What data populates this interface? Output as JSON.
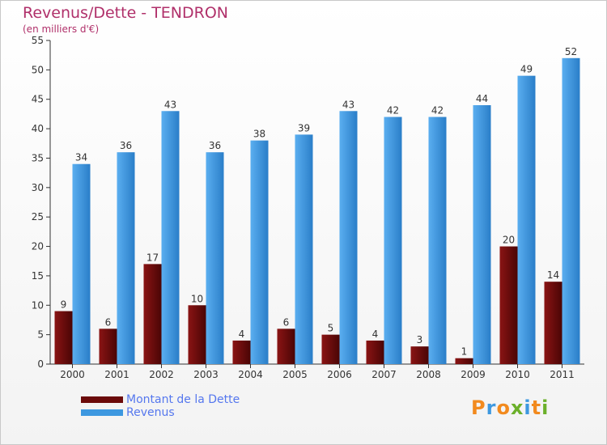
{
  "chart_title": "Revenus/Dette - TENDRON",
  "chart_subtitle": "(en milliers d'€)",
  "logo_text": "Proxiti",
  "colors": {
    "dette": "#6b0a0a",
    "revenus": "#3d98e0",
    "title": "#b0306a",
    "legend_text": "#5577ee"
  },
  "chart_data": {
    "type": "bar",
    "categories": [
      "2000",
      "2001",
      "2002",
      "2003",
      "2004",
      "2005",
      "2006",
      "2007",
      "2008",
      "2009",
      "2010",
      "2011"
    ],
    "series": [
      {
        "name": "Montant de la Dette",
        "values": [
          9,
          6,
          17,
          10,
          4,
          6,
          5,
          4,
          3,
          1,
          20,
          14
        ]
      },
      {
        "name": "Revenus",
        "values": [
          34,
          36,
          43,
          36,
          38,
          39,
          43,
          42,
          42,
          44,
          49,
          52
        ]
      }
    ],
    "ylim": [
      0,
      55
    ],
    "yticks": [
      0,
      5,
      10,
      15,
      20,
      25,
      30,
      35,
      40,
      45,
      50,
      55
    ],
    "grid": false,
    "legend_position": "bottom-left"
  }
}
